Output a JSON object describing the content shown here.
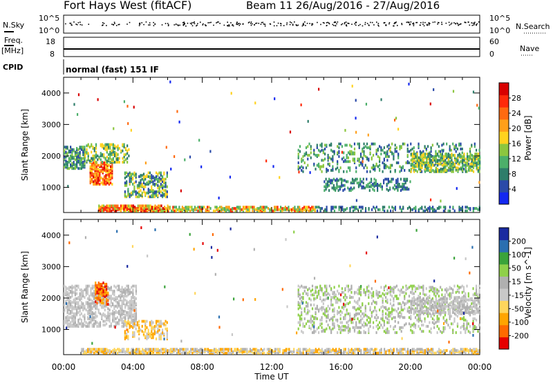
{
  "header": {
    "title": "Fort Hays West (fitACF)",
    "beam_date": "Beam 11 26/Aug/2016 - 27/Aug/2016",
    "mode": "normal (fast) 151 IF"
  },
  "left_labels": {
    "nsky": "N.Sky",
    "freq": "Freq.",
    "mhz": "[MHz]",
    "cpid": "CPID"
  },
  "right_labels": {
    "nsearch": "N.Search",
    "nave": "Nave"
  },
  "top_axes": {
    "noise_ticks": [
      "10^5",
      "10^0"
    ],
    "freq_ticks": [
      "18",
      "8"
    ],
    "nave_ticks": [
      "60",
      "0"
    ]
  },
  "colors": {
    "power_scale": [
      "#1428f0",
      "#2a4aa8",
      "#2e7d6a",
      "#4caf6a",
      "#8cc63f",
      "#ffd21f",
      "#ff9f1a",
      "#ff6a10",
      "#ff2a0a",
      "#d80000"
    ],
    "velocity_scale": [
      "#e60000",
      "#ff6a00",
      "#ffa500",
      "#ffd65c",
      "#c8c8c8",
      "#b0b0b0",
      "#8fd04a",
      "#3aa33a",
      "#2a6fb0",
      "#1a2aa0"
    ]
  },
  "chart_data": [
    {
      "type": "heatmap",
      "name_for_panel": "power",
      "ylabel": "Slant Range [km]",
      "y_ticks": [
        "1000",
        "2000",
        "3000",
        "4000"
      ],
      "ylim": [
        200,
        4500
      ],
      "x_ticks": [
        "00:00",
        "04:00",
        "08:00",
        "12:00",
        "16:00",
        "20:00",
        "00:00"
      ],
      "xlim_hours": [
        0,
        24
      ],
      "colorbar": {
        "label": "Power [dB]",
        "ticks": [
          "4",
          "8",
          "12",
          "16",
          "20",
          "24",
          "28"
        ],
        "range": [
          0,
          30
        ]
      }
    },
    {
      "type": "heatmap",
      "name_for_panel": "velocity",
      "ylabel": "Slant Range [km]",
      "y_ticks": [
        "1000",
        "2000",
        "3000",
        "4000"
      ],
      "ylim": [
        200,
        4500
      ],
      "x_ticks": [
        "00:00",
        "04:00",
        "08:00",
        "12:00",
        "16:00",
        "20:00",
        "00:00"
      ],
      "xlim_hours": [
        0,
        24
      ],
      "xlabel": "Time UT",
      "colorbar": {
        "label": "Velocity [m s^-1]",
        "ticks": [
          "200",
          "100",
          "50",
          "15",
          "-15",
          "-50",
          "-100",
          "-200"
        ],
        "range": [
          -250,
          250
        ]
      }
    }
  ]
}
